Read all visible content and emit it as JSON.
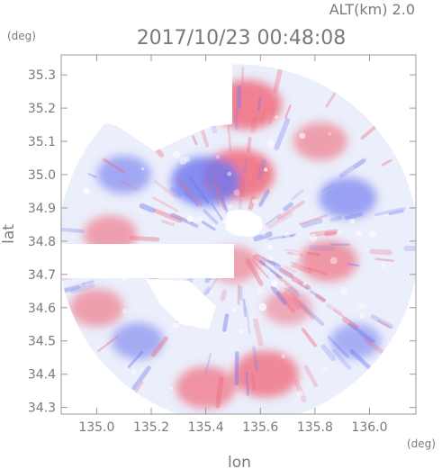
{
  "header": {
    "altitude": "ALT(km)  2.0",
    "datetime": "2017/10/23 00:48:08"
  },
  "chart_data": {
    "type": "heatmap",
    "title": "2017/10/23 00:48:08",
    "subtitle": "ALT(km)  2.0",
    "xlabel": "lon",
    "ylabel": "lat",
    "x_unit": "(deg)",
    "y_unit": "(deg)",
    "xlim": [
      134.87,
      136.17
    ],
    "ylim": [
      34.28,
      35.36
    ],
    "x_ticks": [
      135.0,
      135.2,
      135.4,
      135.6,
      135.8,
      136.0
    ],
    "x_tick_labels": [
      "135.0",
      "135.2",
      "135.4",
      "135.6",
      "135.8",
      "136.0"
    ],
    "y_ticks": [
      34.3,
      34.4,
      34.5,
      34.6,
      34.7,
      34.8,
      34.9,
      35.0,
      35.1,
      35.2,
      35.3
    ],
    "y_tick_labels": [
      "34.3",
      "34.4",
      "34.5",
      "34.6",
      "34.7",
      "34.8",
      "34.9",
      "35.0",
      "35.1",
      "35.2",
      "35.3"
    ],
    "grid": false,
    "colors": {
      "positive": "#f0697a",
      "negative": "#6f78ee",
      "neutral": "#f2f2f2",
      "axis": "#9a9a9a"
    },
    "radar": {
      "center_lon": 135.52,
      "center_lat": 34.79,
      "radius_lon": 0.66
    },
    "regions": [
      {
        "lon": 135.55,
        "lat": 35.21,
        "value": 0.85
      },
      {
        "lon": 135.52,
        "lat": 35.0,
        "value": 0.9
      },
      {
        "lon": 135.4,
        "lat": 34.98,
        "value": -0.85
      },
      {
        "lon": 135.1,
        "lat": 35.0,
        "value": -0.45
      },
      {
        "lon": 135.92,
        "lat": 34.93,
        "value": -0.55
      },
      {
        "lon": 135.82,
        "lat": 35.1,
        "value": 0.45
      },
      {
        "lon": 135.85,
        "lat": 34.74,
        "value": 0.55
      },
      {
        "lon": 135.5,
        "lat": 34.73,
        "value": 0.4
      },
      {
        "lon": 135.05,
        "lat": 34.82,
        "value": 0.45
      },
      {
        "lon": 135.62,
        "lat": 34.4,
        "value": 0.75
      },
      {
        "lon": 135.4,
        "lat": 34.36,
        "value": 0.6
      },
      {
        "lon": 135.15,
        "lat": 34.5,
        "value": -0.4
      },
      {
        "lon": 135.0,
        "lat": 34.6,
        "value": 0.45
      },
      {
        "lon": 135.95,
        "lat": 34.5,
        "value": -0.35
      },
      {
        "lon": 135.7,
        "lat": 34.6,
        "value": 0.3
      }
    ]
  }
}
